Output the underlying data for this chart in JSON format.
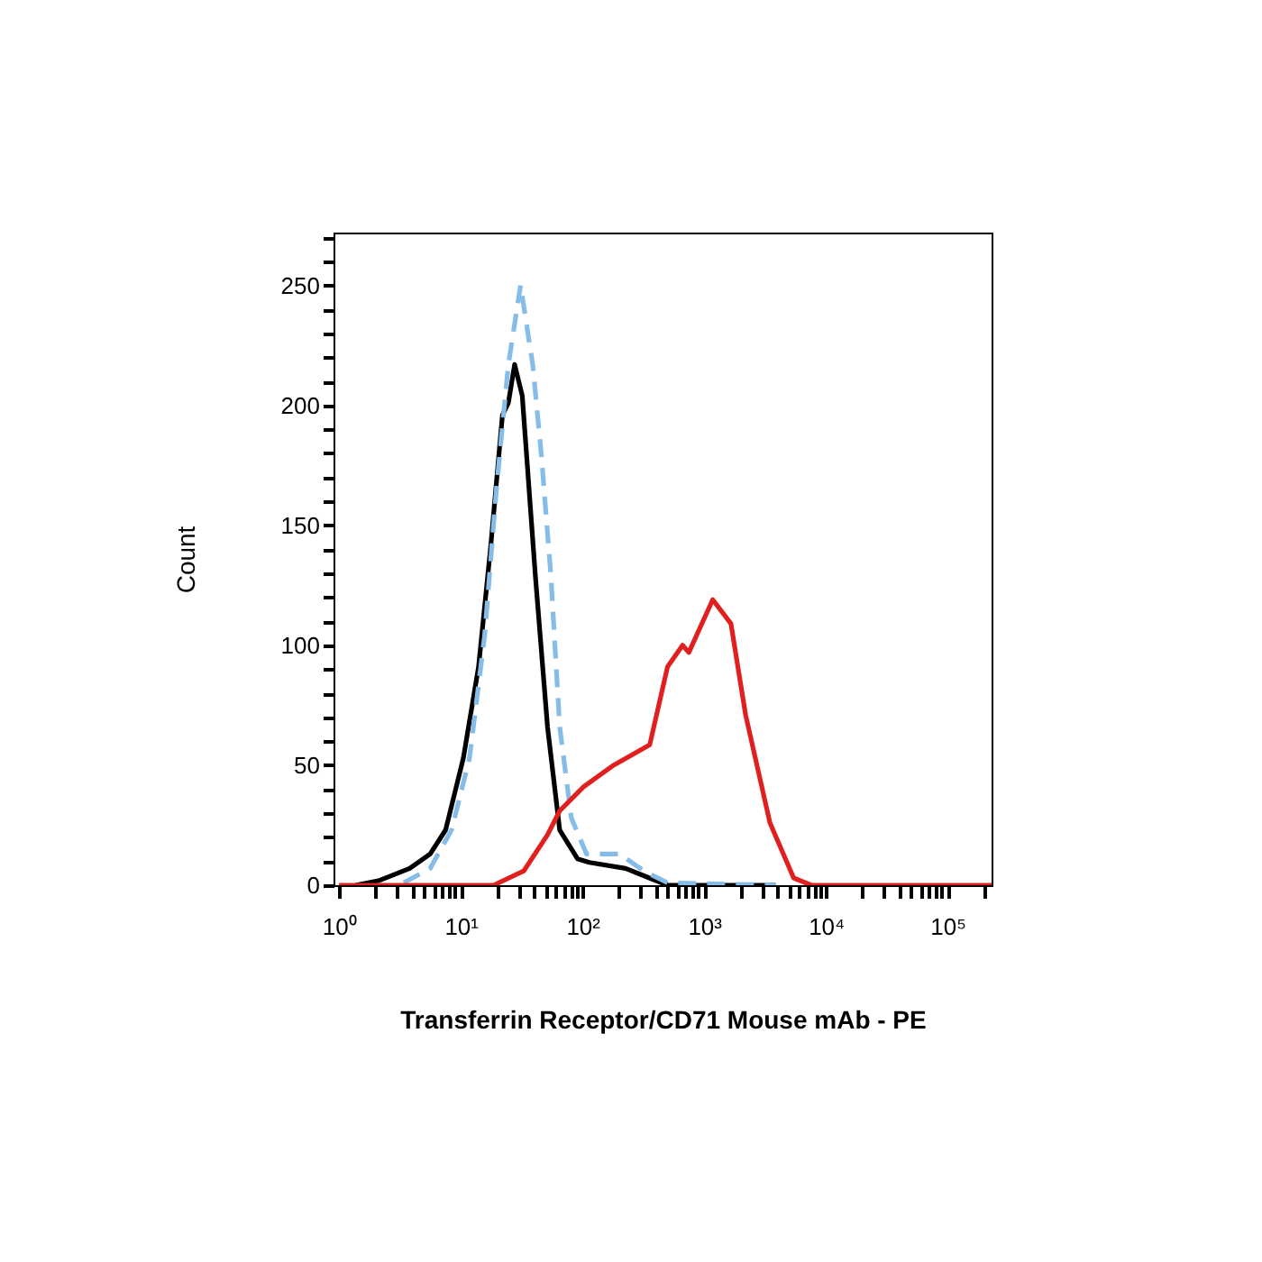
{
  "chart_data": {
    "type": "line",
    "xlabel": "Transferrin Receptor/CD71 Mouse mAb - PE",
    "ylabel": "Count",
    "log": "x",
    "grid": false,
    "legend": false,
    "marker": "none",
    "xlim": [
      0.9,
      230000
    ],
    "ylim": [
      0,
      272
    ],
    "xticks": [
      {
        "value": 1,
        "label": "10⁰"
      },
      {
        "value": 2,
        "label": null
      },
      {
        "value": 3,
        "label": null
      },
      {
        "value": 4,
        "label": null
      },
      {
        "value": 5,
        "label": null
      },
      {
        "value": 6,
        "label": null
      },
      {
        "value": 7,
        "label": null
      },
      {
        "value": 8,
        "label": null
      },
      {
        "value": 9,
        "label": null
      },
      {
        "value": 10,
        "label": "10¹"
      },
      {
        "value": 20,
        "label": null
      },
      {
        "value": 30,
        "label": null
      },
      {
        "value": 40,
        "label": null
      },
      {
        "value": 50,
        "label": null
      },
      {
        "value": 60,
        "label": null
      },
      {
        "value": 70,
        "label": null
      },
      {
        "value": 80,
        "label": null
      },
      {
        "value": 90,
        "label": null
      },
      {
        "value": 100,
        "label": "10²"
      },
      {
        "value": 200,
        "label": null
      },
      {
        "value": 300,
        "label": null
      },
      {
        "value": 400,
        "label": null
      },
      {
        "value": 500,
        "label": null
      },
      {
        "value": 600,
        "label": null
      },
      {
        "value": 700,
        "label": null
      },
      {
        "value": 800,
        "label": null
      },
      {
        "value": 900,
        "label": null
      },
      {
        "value": 1000,
        "label": "10³"
      },
      {
        "value": 2000,
        "label": null
      },
      {
        "value": 3000,
        "label": null
      },
      {
        "value": 4000,
        "label": null
      },
      {
        "value": 5000,
        "label": null
      },
      {
        "value": 6000,
        "label": null
      },
      {
        "value": 7000,
        "label": null
      },
      {
        "value": 8000,
        "label": null
      },
      {
        "value": 9000,
        "label": null
      },
      {
        "value": 10000,
        "label": "10⁴"
      },
      {
        "value": 20000,
        "label": null
      },
      {
        "value": 30000,
        "label": null
      },
      {
        "value": 40000,
        "label": null
      },
      {
        "value": 50000,
        "label": null
      },
      {
        "value": 60000,
        "label": null
      },
      {
        "value": 70000,
        "label": null
      },
      {
        "value": 80000,
        "label": null
      },
      {
        "value": 90000,
        "label": null
      },
      {
        "value": 100000,
        "label": "10⁵"
      },
      {
        "value": 200000,
        "label": null
      }
    ],
    "yticks": [
      0,
      {
        "value": 10,
        "label": null
      },
      {
        "value": 20,
        "label": null
      },
      {
        "value": 30,
        "label": null
      },
      {
        "value": 40,
        "label": null
      },
      50,
      {
        "value": 60,
        "label": null
      },
      {
        "value": 70,
        "label": null
      },
      {
        "value": 80,
        "label": null
      },
      {
        "value": 90,
        "label": null
      },
      100,
      {
        "value": 110,
        "label": null
      },
      {
        "value": 120,
        "label": null
      },
      {
        "value": 130,
        "label": null
      },
      {
        "value": 140,
        "label": null
      },
      150,
      {
        "value": 160,
        "label": null
      },
      {
        "value": 170,
        "label": null
      },
      {
        "value": 180,
        "label": null
      },
      {
        "value": 190,
        "label": null
      },
      200,
      {
        "value": 210,
        "label": null
      },
      {
        "value": 220,
        "label": null
      },
      {
        "value": 230,
        "label": null
      },
      {
        "value": 240,
        "label": null
      },
      250,
      {
        "value": 260,
        "label": null
      },
      {
        "value": 270,
        "label": null
      }
    ],
    "series": [
      {
        "color": "#000000",
        "line_style": "solid",
        "x": [
          1.37,
          2.15,
          3.8,
          5.6,
          7.5,
          10.5,
          14,
          17.6,
          22,
          24.6,
          27.7,
          32,
          41,
          51.6,
          65,
          91,
          114,
          226,
          355,
          500,
          3900
        ],
        "values": [
          0,
          2,
          7,
          13,
          23,
          53,
          91,
          141,
          196,
          201,
          217,
          204,
          129,
          66,
          23,
          11,
          9.5,
          7,
          3,
          0,
          0
        ]
      },
      {
        "color": "#86bde8",
        "line_style": "dashed",
        "x": [
          3.4,
          5.6,
          8.4,
          11.8,
          15.7,
          19.7,
          24.6,
          31,
          39,
          46,
          55,
          65,
          81,
          108,
          202,
          318,
          500,
          3900
        ],
        "values": [
          1,
          7,
          23,
          53,
          104,
          166,
          217,
          250,
          217,
          179,
          129,
          66,
          28,
          13,
          13,
          6,
          1,
          0
        ]
      },
      {
        "color": "#e0201f",
        "line_style": "solid",
        "x": [
          1,
          18.6,
          33,
          51.6,
          65,
          102,
          180,
          357,
          500,
          665,
          748,
          1176,
          1660,
          2190,
          3470,
          5440,
          7600,
          230000
        ],
        "values": [
          0,
          0,
          6,
          21,
          31,
          41,
          50,
          58.5,
          91,
          100,
          97,
          119,
          109,
          71,
          26,
          3,
          0,
          0
        ]
      }
    ]
  }
}
